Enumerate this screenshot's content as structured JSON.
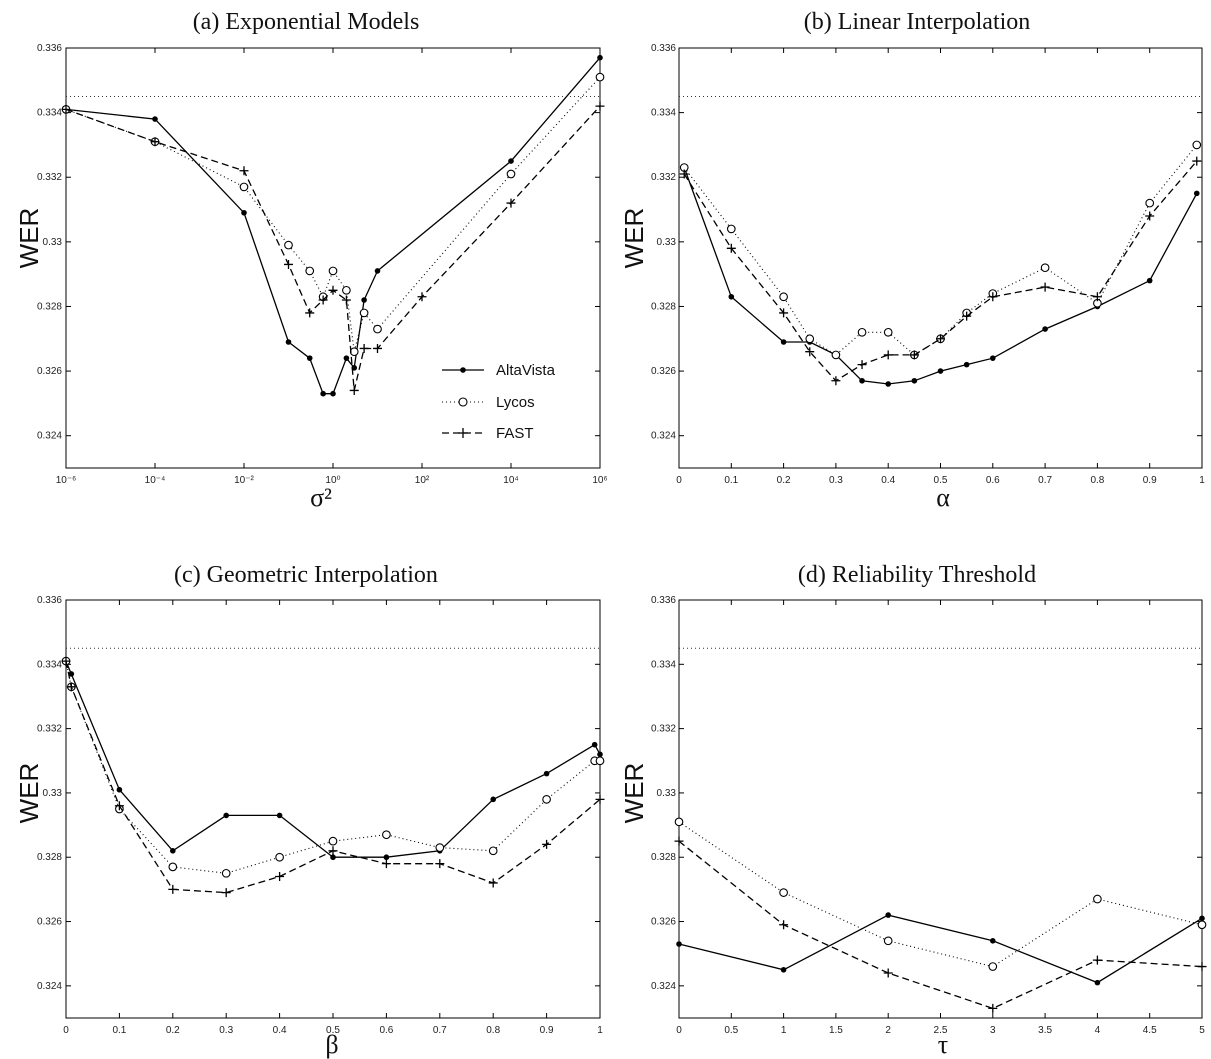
{
  "chart_data": [
    {
      "type": "line",
      "title": "(a) Exponential Models",
      "xlabel": "σ²",
      "ylabel": "WER",
      "xscale": "log",
      "xlim": [
        1e-06,
        1000000.0
      ],
      "ylim": [
        0.323,
        0.336
      ],
      "xticks": [
        1e-06,
        0.0001,
        0.01,
        1,
        100,
        10000,
        1000000
      ],
      "xtick_labels": [
        "10⁻⁶",
        "10⁻⁴",
        "10⁻²",
        "10⁰",
        "10²",
        "10⁴",
        "10⁶"
      ],
      "yticks": [
        0.324,
        0.326,
        0.328,
        0.33,
        0.332,
        0.334,
        0.336
      ],
      "ytick_labels": [
        "0.324",
        "0.326",
        "0.328",
        "0.33",
        "0.332",
        "0.334",
        "0.336"
      ],
      "baseline": 0.3345,
      "legend": "bottom-right",
      "series": [
        {
          "name": "AltaVista",
          "style": "solid",
          "marker": "dot",
          "x": [
            1e-06,
            0.0001,
            0.01,
            0.1,
            0.3,
            0.6,
            1,
            2,
            3,
            5,
            10,
            10000,
            1000000
          ],
          "y": [
            0.3341,
            0.3338,
            0.3309,
            0.3269,
            0.3264,
            0.3253,
            0.3253,
            0.3264,
            0.3261,
            0.3282,
            0.3291,
            0.3325,
            0.3357
          ]
        },
        {
          "name": "Lycos",
          "style": "dotted",
          "marker": "circle",
          "x": [
            1e-06,
            0.0001,
            0.01,
            0.1,
            0.3,
            0.6,
            1,
            2,
            3,
            5,
            10,
            10000,
            1000000
          ],
          "y": [
            0.3341,
            0.3331,
            0.3317,
            0.3299,
            0.3291,
            0.3283,
            0.3291,
            0.3285,
            0.3266,
            0.3278,
            0.3273,
            0.3321,
            0.3351
          ]
        },
        {
          "name": "FAST",
          "style": "dashed",
          "marker": "plus",
          "x": [
            1e-06,
            0.0001,
            0.01,
            0.1,
            0.3,
            0.6,
            1,
            2,
            3,
            5,
            10,
            100,
            10000,
            1000000
          ],
          "y": [
            0.3341,
            0.3331,
            0.3322,
            0.3293,
            0.3278,
            0.3282,
            0.3285,
            0.3282,
            0.3254,
            0.3267,
            0.3267,
            0.3283,
            0.3312,
            0.3342
          ]
        }
      ]
    },
    {
      "type": "line",
      "title": "(b) Linear Interpolation",
      "xlabel": "α",
      "ylabel": "WER",
      "xscale": "linear",
      "xlim": [
        0,
        1
      ],
      "ylim": [
        0.323,
        0.336
      ],
      "xticks": [
        0,
        0.1,
        0.2,
        0.3,
        0.4,
        0.5,
        0.6,
        0.7,
        0.8,
        0.9,
        1
      ],
      "xtick_labels": [
        "0",
        "0.1",
        "0.2",
        "0.3",
        "0.4",
        "0.5",
        "0.6",
        "0.7",
        "0.8",
        "0.9",
        "1"
      ],
      "yticks": [
        0.324,
        0.326,
        0.328,
        0.33,
        0.332,
        0.334,
        0.336
      ],
      "ytick_labels": [
        "0.324",
        "0.326",
        "0.328",
        "0.33",
        "0.332",
        "0.334",
        "0.336"
      ],
      "baseline": 0.3345,
      "series": [
        {
          "name": "AltaVista",
          "style": "solid",
          "marker": "dot",
          "x": [
            0.01,
            0.1,
            0.2,
            0.25,
            0.3,
            0.35,
            0.4,
            0.45,
            0.5,
            0.55,
            0.6,
            0.7,
            0.8,
            0.9,
            0.99
          ],
          "y": [
            0.3323,
            0.3283,
            0.3269,
            0.3269,
            0.3265,
            0.3257,
            0.3256,
            0.3257,
            0.326,
            0.3262,
            0.3264,
            0.3273,
            0.328,
            0.3288,
            0.3315
          ]
        },
        {
          "name": "Lycos",
          "style": "dotted",
          "marker": "circle",
          "x": [
            0.01,
            0.1,
            0.2,
            0.25,
            0.3,
            0.35,
            0.4,
            0.45,
            0.5,
            0.55,
            0.6,
            0.7,
            0.8,
            0.9,
            0.99
          ],
          "y": [
            0.3323,
            0.3304,
            0.3283,
            0.327,
            0.3265,
            0.3272,
            0.3272,
            0.3265,
            0.327,
            0.3278,
            0.3284,
            0.3292,
            0.3281,
            0.3312,
            0.333
          ]
        },
        {
          "name": "FAST",
          "style": "dashed",
          "marker": "plus",
          "x": [
            0.01,
            0.1,
            0.2,
            0.25,
            0.3,
            0.35,
            0.4,
            0.45,
            0.5,
            0.55,
            0.6,
            0.7,
            0.8,
            0.9,
            0.99
          ],
          "y": [
            0.3321,
            0.3298,
            0.3278,
            0.3266,
            0.3257,
            0.3262,
            0.3265,
            0.3265,
            0.327,
            0.3277,
            0.3283,
            0.3286,
            0.3283,
            0.3308,
            0.3325
          ]
        }
      ]
    },
    {
      "type": "line",
      "title": "(c) Geometric Interpolation",
      "xlabel": "β",
      "ylabel": "WER",
      "xscale": "linear",
      "xlim": [
        0,
        1
      ],
      "ylim": [
        0.323,
        0.336
      ],
      "xticks": [
        0,
        0.1,
        0.2,
        0.3,
        0.4,
        0.5,
        0.6,
        0.7,
        0.8,
        0.9,
        1
      ],
      "xtick_labels": [
        "0",
        "0.1",
        "0.2",
        "0.3",
        "0.4",
        "0.5",
        "0.6",
        "0.7",
        "0.8",
        "0.9",
        "1"
      ],
      "yticks": [
        0.324,
        0.326,
        0.328,
        0.33,
        0.332,
        0.334,
        0.336
      ],
      "ytick_labels": [
        "0.324",
        "0.326",
        "0.328",
        "0.33",
        "0.332",
        "0.334",
        "0.336"
      ],
      "baseline": 0.3345,
      "series": [
        {
          "name": "AltaVista",
          "style": "solid",
          "marker": "dot",
          "x": [
            0,
            0.01,
            0.1,
            0.2,
            0.3,
            0.4,
            0.5,
            0.6,
            0.7,
            0.8,
            0.9,
            0.99,
            1
          ],
          "y": [
            0.3341,
            0.3337,
            0.3301,
            0.3282,
            0.3293,
            0.3293,
            0.328,
            0.328,
            0.3282,
            0.3298,
            0.3306,
            0.3315,
            0.3312
          ]
        },
        {
          "name": "Lycos",
          "style": "dotted",
          "marker": "circle",
          "x": [
            0,
            0.01,
            0.1,
            0.2,
            0.3,
            0.4,
            0.5,
            0.6,
            0.7,
            0.8,
            0.9,
            0.99,
            1
          ],
          "y": [
            0.3341,
            0.3333,
            0.3295,
            0.3277,
            0.3275,
            0.328,
            0.3285,
            0.3287,
            0.3283,
            0.3282,
            0.3298,
            0.331,
            0.331
          ]
        },
        {
          "name": "FAST",
          "style": "dashed",
          "marker": "plus",
          "x": [
            0,
            0.01,
            0.1,
            0.2,
            0.3,
            0.4,
            0.5,
            0.6,
            0.7,
            0.8,
            0.9,
            1
          ],
          "y": [
            0.3341,
            0.3333,
            0.3296,
            0.327,
            0.3269,
            0.3274,
            0.3282,
            0.3278,
            0.3278,
            0.3272,
            0.3284,
            0.3298
          ]
        }
      ]
    },
    {
      "type": "line",
      "title": "(d) Reliability Threshold",
      "xlabel": "τ",
      "ylabel": "WER",
      "xscale": "linear",
      "xlim": [
        0,
        5
      ],
      "ylim": [
        0.323,
        0.336
      ],
      "xticks": [
        0,
        0.5,
        1,
        1.5,
        2,
        2.5,
        3,
        3.5,
        4,
        4.5,
        5
      ],
      "xtick_labels": [
        "0",
        "0.5",
        "1",
        "1.5",
        "2",
        "2.5",
        "3",
        "3.5",
        "4",
        "4.5",
        "5"
      ],
      "yticks": [
        0.324,
        0.326,
        0.328,
        0.33,
        0.332,
        0.334,
        0.336
      ],
      "ytick_labels": [
        "0.324",
        "0.326",
        "0.328",
        "0.33",
        "0.332",
        "0.334",
        "0.336"
      ],
      "baseline": 0.3345,
      "series": [
        {
          "name": "AltaVista",
          "style": "solid",
          "marker": "dot",
          "x": [
            0,
            1,
            2,
            3,
            4,
            5
          ],
          "y": [
            0.3253,
            0.3245,
            0.3262,
            0.3254,
            0.3241,
            0.3261
          ]
        },
        {
          "name": "Lycos",
          "style": "dotted",
          "marker": "circle",
          "x": [
            0,
            1,
            2,
            3,
            4,
            5
          ],
          "y": [
            0.3291,
            0.3269,
            0.3254,
            0.3246,
            0.3267,
            0.3259
          ]
        },
        {
          "name": "FAST",
          "style": "dashed",
          "marker": "plus",
          "x": [
            0,
            1,
            2,
            3,
            4,
            5
          ],
          "y": [
            0.3285,
            0.3259,
            0.3244,
            0.3233,
            0.3248,
            0.3246
          ]
        }
      ]
    }
  ]
}
